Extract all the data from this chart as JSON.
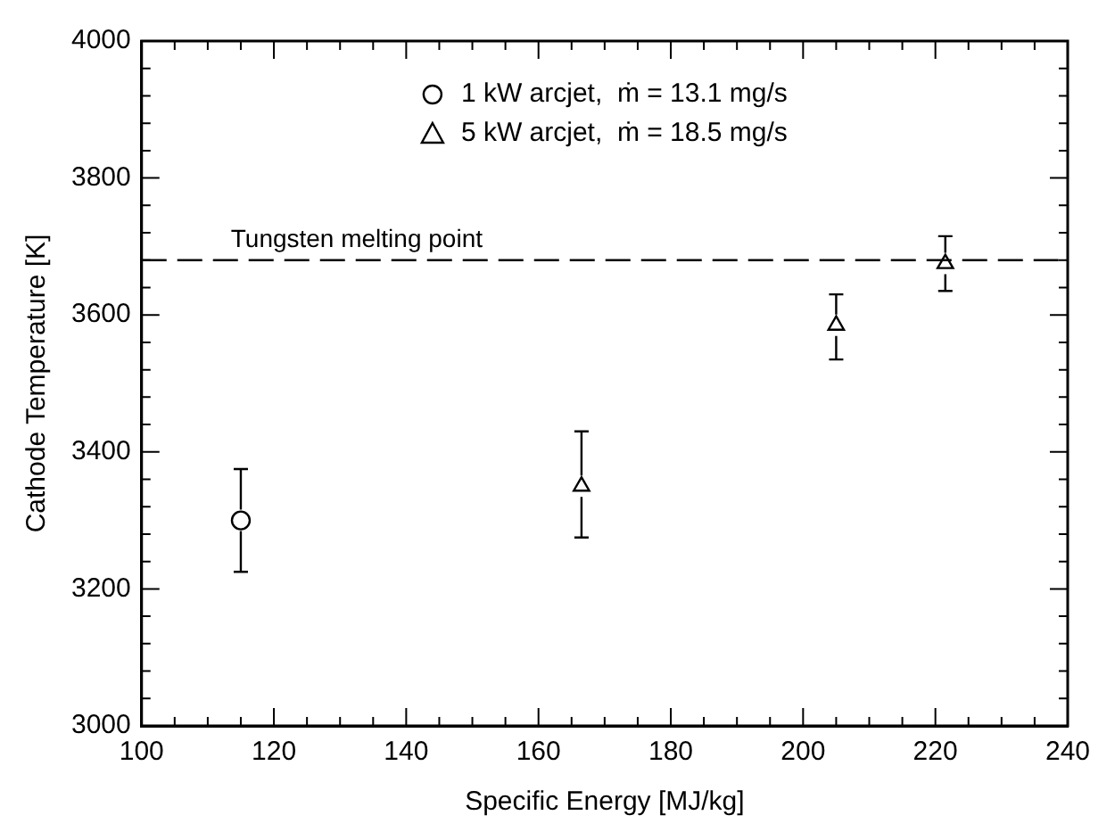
{
  "chart_data": {
    "type": "scatter",
    "xlabel": "Specific Energy [MJ/kg]",
    "ylabel": "Cathode Temperature [K]",
    "series": [
      {
        "name": "1 kW arcjet,  ṁ = 13.1 mg/s",
        "color": "#000000",
        "marker": "circle",
        "x": [
          115
        ],
        "values": [
          3300
        ],
        "errors": [
          [
            3225,
            3375
          ]
        ]
      },
      {
        "name": "5 kW arcjet,  ṁ = 18.5 mg/s",
        "color": "#000000",
        "marker": "triangle",
        "x": [
          166.5,
          205,
          221.5
        ],
        "values": [
          3350,
          3585,
          3675
        ],
        "errors": [
          [
            3275,
            3430
          ],
          [
            3535,
            3630
          ],
          [
            3635,
            3715
          ]
        ]
      }
    ],
    "xlim": [
      100,
      240
    ],
    "xticks": [
      100,
      {
        "value": 105,
        "label": null
      },
      {
        "value": 110,
        "label": null
      },
      {
        "value": 115,
        "label": null
      },
      120,
      {
        "value": 125,
        "label": null
      },
      {
        "value": 130,
        "label": null
      },
      {
        "value": 135,
        "label": null
      },
      140,
      {
        "value": 145,
        "label": null
      },
      {
        "value": 150,
        "label": null
      },
      {
        "value": 155,
        "label": null
      },
      160,
      {
        "value": 165,
        "label": null
      },
      {
        "value": 170,
        "label": null
      },
      {
        "value": 175,
        "label": null
      },
      180,
      {
        "value": 185,
        "label": null
      },
      {
        "value": 190,
        "label": null
      },
      {
        "value": 195,
        "label": null
      },
      200,
      {
        "value": 205,
        "label": null
      },
      {
        "value": 210,
        "label": null
      },
      {
        "value": 215,
        "label": null
      },
      220,
      {
        "value": 225,
        "label": null
      },
      {
        "value": 230,
        "label": null
      },
      {
        "value": 235,
        "label": null
      },
      240
    ],
    "ylim": [
      3000,
      4000
    ],
    "yticks": [
      3000,
      {
        "value": 3040,
        "label": null
      },
      {
        "value": 3080,
        "label": null
      },
      {
        "value": 3120,
        "label": null
      },
      {
        "value": 3160,
        "label": null
      },
      3200,
      {
        "value": 3240,
        "label": null
      },
      {
        "value": 3280,
        "label": null
      },
      {
        "value": 3320,
        "label": null
      },
      {
        "value": 3360,
        "label": null
      },
      3400,
      {
        "value": 3440,
        "label": null
      },
      {
        "value": 3480,
        "label": null
      },
      {
        "value": 3520,
        "label": null
      },
      {
        "value": 3560,
        "label": null
      },
      3600,
      {
        "value": 3640,
        "label": null
      },
      {
        "value": 3680,
        "label": null
      },
      {
        "value": 3720,
        "label": null
      },
      {
        "value": 3760,
        "label": null
      },
      3800,
      {
        "value": 3840,
        "label": null
      },
      {
        "value": 3880,
        "label": null
      },
      {
        "value": 3920,
        "label": null
      },
      {
        "value": 3960,
        "label": null
      },
      4000
    ],
    "ref_lines": [
      {
        "axis": "y",
        "value": 3680,
        "label": "Tungsten melting point",
        "line_style": "dashed",
        "color": "#000000"
      }
    ],
    "grid": false,
    "legend": "top"
  }
}
